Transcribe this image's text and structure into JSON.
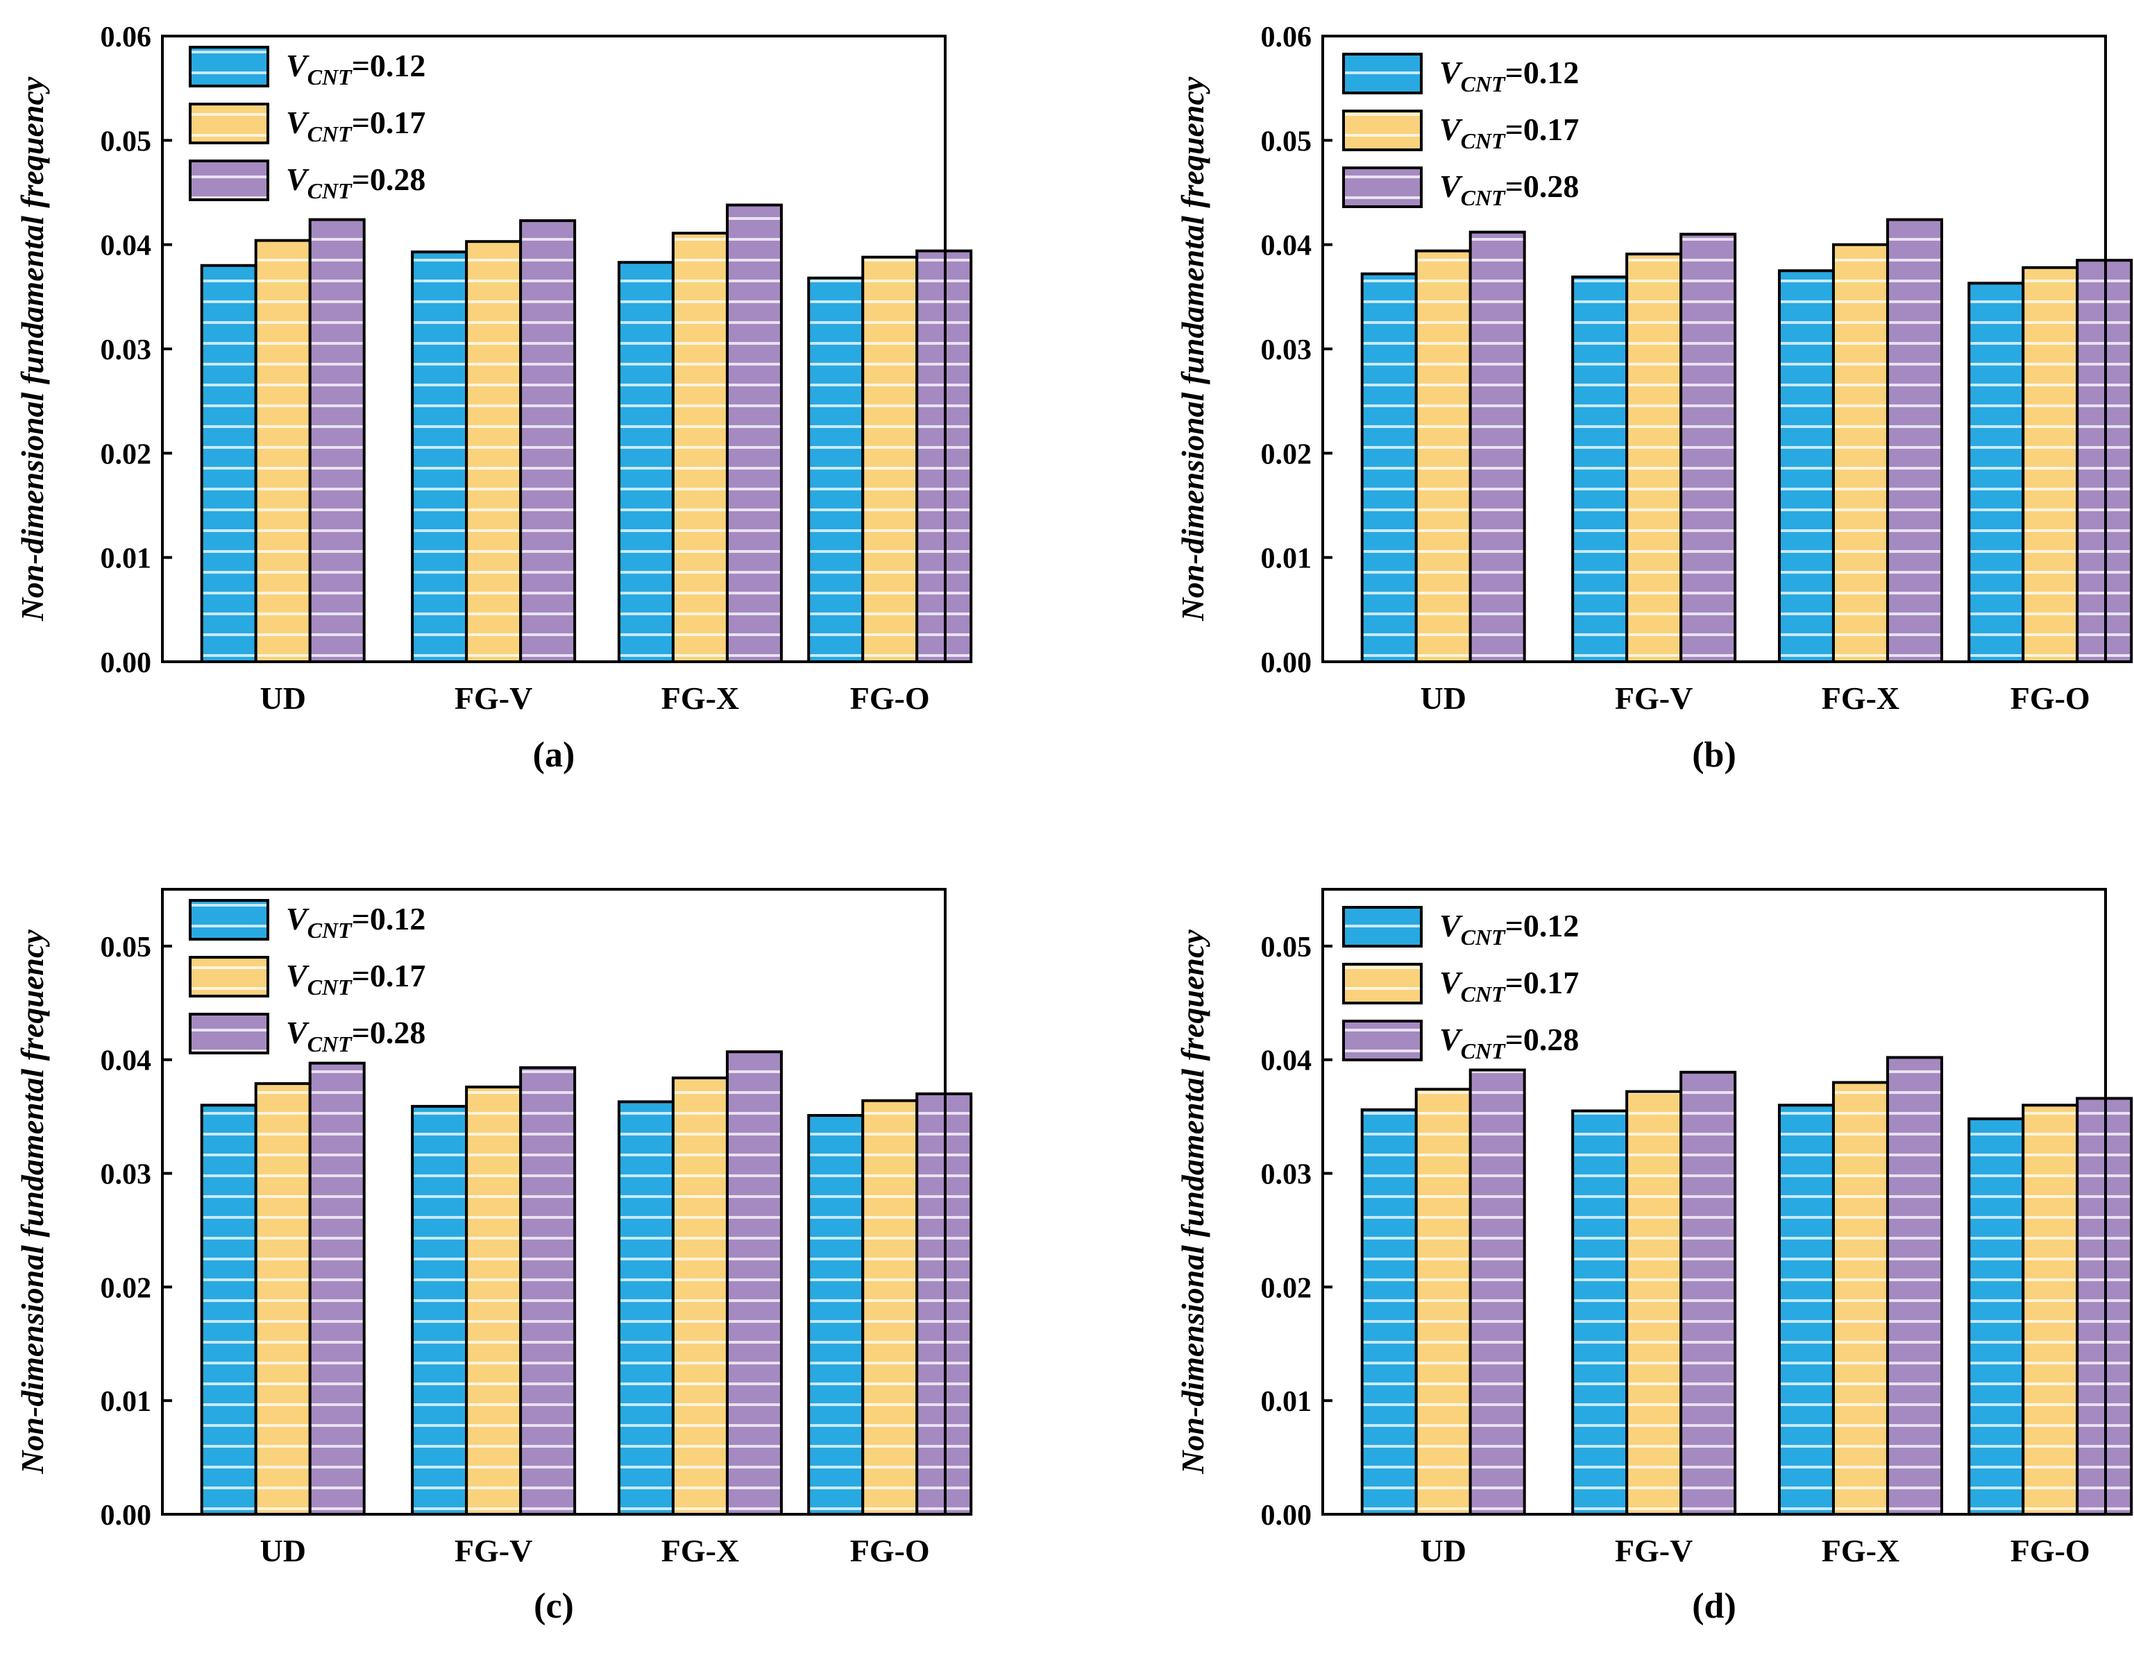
{
  "colors": {
    "series_0": "#29a9e1",
    "series_1": "#fad27c",
    "series_2": "#a58ac1",
    "stripe": "#ffffff",
    "axis": "#000000"
  },
  "chart_data": [
    {
      "type": "bar",
      "panel_label": "(a)",
      "ylabel": "Non-dimensional fundamental frequency",
      "xlabel": "",
      "categories": [
        "UD",
        "FG-V",
        "FG-X",
        "FG-O"
      ],
      "ylim": [
        0,
        0.06
      ],
      "yticks": [
        "0.00",
        "0.01",
        "0.02",
        "0.03",
        "0.04",
        "0.05",
        "0.06"
      ],
      "legend_position": "top-left",
      "series": [
        {
          "name_prefix": "V",
          "name_sub": "CNT",
          "name_suffix": "=0.12",
          "values": [
            0.038,
            0.0393,
            0.0383,
            0.0368
          ]
        },
        {
          "name_prefix": "V",
          "name_sub": "CNT",
          "name_suffix": "=0.17",
          "values": [
            0.0404,
            0.0403,
            0.0411,
            0.0388
          ]
        },
        {
          "name_prefix": "V",
          "name_sub": "CNT",
          "name_suffix": "=0.28",
          "values": [
            0.0424,
            0.0423,
            0.0438,
            0.0394
          ]
        }
      ]
    },
    {
      "type": "bar",
      "panel_label": "(b)",
      "ylabel": "Non-dimensional fundamental frequency",
      "xlabel": "",
      "categories": [
        "UD",
        "FG-V",
        "FG-X",
        "FG-O"
      ],
      "ylim": [
        0,
        0.06
      ],
      "yticks": [
        "0.00",
        "0.01",
        "0.02",
        "0.03",
        "0.04",
        "0.05",
        "0.06"
      ],
      "legend_position": "top-left",
      "series": [
        {
          "name_prefix": "V",
          "name_sub": "CNT",
          "name_suffix": "=0.12",
          "values": [
            0.0372,
            0.0369,
            0.0375,
            0.0363
          ]
        },
        {
          "name_prefix": "V",
          "name_sub": "CNT",
          "name_suffix": "=0.17",
          "values": [
            0.0394,
            0.0391,
            0.04,
            0.0378
          ]
        },
        {
          "name_prefix": "V",
          "name_sub": "CNT",
          "name_suffix": "=0.28",
          "values": [
            0.0412,
            0.041,
            0.0424,
            0.0385
          ]
        }
      ]
    },
    {
      "type": "bar",
      "panel_label": "(c)",
      "ylabel": "Non-dimensional fundamental frequency",
      "xlabel": "",
      "categories": [
        "UD",
        "FG-V",
        "FG-X",
        "FG-O"
      ],
      "ylim": [
        0,
        0.055
      ],
      "yticks": [
        "0.00",
        "0.01",
        "0.02",
        "0.03",
        "0.04",
        "0.05"
      ],
      "legend_position": "top-left",
      "series": [
        {
          "name_prefix": "V",
          "name_sub": "CNT",
          "name_suffix": "=0.12",
          "values": [
            0.036,
            0.0359,
            0.0363,
            0.0351
          ]
        },
        {
          "name_prefix": "V",
          "name_sub": "CNT",
          "name_suffix": "=0.17",
          "values": [
            0.0379,
            0.0376,
            0.0384,
            0.0364
          ]
        },
        {
          "name_prefix": "V",
          "name_sub": "CNT",
          "name_suffix": "=0.28",
          "values": [
            0.0397,
            0.0393,
            0.0407,
            0.037
          ]
        }
      ]
    },
    {
      "type": "bar",
      "panel_label": "(d)",
      "ylabel": "Non-dimensional fundamental frequency",
      "xlabel": "",
      "categories": [
        "UD",
        "FG-V",
        "FG-X",
        "FG-O"
      ],
      "ylim": [
        0,
        0.055
      ],
      "yticks": [
        "0.00",
        "0.01",
        "0.02",
        "0.03",
        "0.04",
        "0.05"
      ],
      "legend_position": "top-left",
      "series": [
        {
          "name_prefix": "V",
          "name_sub": "CNT",
          "name_suffix": "=0.12",
          "values": [
            0.0356,
            0.0355,
            0.036,
            0.0348
          ]
        },
        {
          "name_prefix": "V",
          "name_sub": "CNT",
          "name_suffix": "=0.17",
          "values": [
            0.0374,
            0.0372,
            0.038,
            0.036
          ]
        },
        {
          "name_prefix": "V",
          "name_sub": "CNT",
          "name_suffix": "=0.28",
          "values": [
            0.0391,
            0.0389,
            0.0402,
            0.0366
          ]
        }
      ]
    }
  ]
}
